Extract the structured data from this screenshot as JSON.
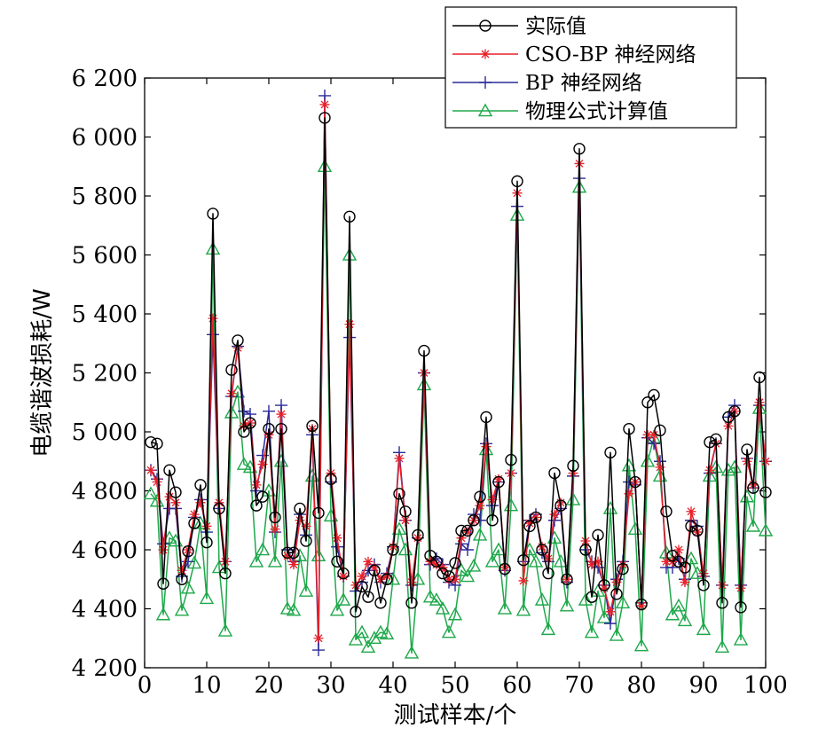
{
  "chart_data": {
    "type": "line",
    "xlabel": "测试样本/个",
    "ylabel": "电缆谐波损耗/W",
    "xlim": [
      0,
      100
    ],
    "ylim": [
      4200,
      6200
    ],
    "xticks": [
      0,
      10,
      20,
      30,
      40,
      50,
      60,
      70,
      80,
      90,
      100
    ],
    "yticks": [
      4200,
      4400,
      4600,
      4800,
      5000,
      5200,
      5400,
      5600,
      5800,
      6000,
      6200
    ],
    "xtick_labels": [
      "0",
      "10",
      "20",
      "30",
      "40",
      "50",
      "60",
      "70",
      "80",
      "90",
      "100"
    ],
    "ytick_labels": [
      "4 200",
      "4 400",
      "4 600",
      "4 800",
      "5 000",
      "5 200",
      "5 400",
      "5 600",
      "5 800",
      "6 000",
      "6 200"
    ],
    "legend_position": "top-right",
    "grid": false,
    "x": [
      1,
      2,
      3,
      4,
      5,
      6,
      7,
      8,
      9,
      10,
      11,
      12,
      13,
      14,
      15,
      16,
      17,
      18,
      19,
      20,
      21,
      22,
      23,
      24,
      25,
      26,
      27,
      28,
      29,
      30,
      31,
      32,
      33,
      34,
      35,
      36,
      37,
      38,
      39,
      40,
      41,
      42,
      43,
      44,
      45,
      46,
      47,
      48,
      49,
      50,
      51,
      52,
      53,
      54,
      55,
      56,
      57,
      58,
      59,
      60,
      61,
      62,
      63,
      64,
      65,
      66,
      67,
      68,
      69,
      70,
      71,
      72,
      73,
      74,
      75,
      76,
      77,
      78,
      79,
      80,
      81,
      82,
      83,
      84,
      85,
      86,
      87,
      88,
      89,
      90,
      91,
      92,
      93,
      94,
      95,
      96,
      97,
      98,
      99,
      100
    ],
    "series": [
      {
        "name": "实际值",
        "color": "#000000",
        "marker": "circle",
        "values": [
          4965,
          4960,
          4485,
          4870,
          4795,
          4500,
          4595,
          4690,
          4820,
          4625,
          5740,
          4740,
          4520,
          5210,
          5310,
          5000,
          5030,
          4750,
          4780,
          5010,
          4710,
          5010,
          4590,
          4590,
          4740,
          4630,
          5020,
          4725,
          6065,
          4840,
          4560,
          4520,
          5730,
          4390,
          4475,
          4440,
          4530,
          4420,
          4500,
          4600,
          4790,
          4730,
          4420,
          4650,
          5275,
          4580,
          4560,
          4520,
          4510,
          4555,
          4665,
          4665,
          4700,
          4780,
          5050,
          4700,
          4830,
          4535,
          4905,
          5850,
          4565,
          4680,
          4710,
          4600,
          4520,
          4860,
          4750,
          4500,
          4885,
          5960,
          4600,
          4440,
          4650,
          4480,
          4930,
          4450,
          4535,
          5010,
          4830,
          4415,
          5100,
          5125,
          5005,
          4730,
          4580,
          4560,
          4540,
          4680,
          4665,
          4480,
          4965,
          4975,
          4420,
          5050,
          5070,
          4405,
          4940,
          4810,
          5185,
          4795
        ]
      },
      {
        "name": "CSO-BP 神经网络",
        "color": "#e8202a",
        "marker": "star",
        "values": [
          4870,
          4830,
          4600,
          4780,
          4760,
          4530,
          4600,
          4720,
          4760,
          4680,
          5385,
          4760,
          4560,
          5130,
          5285,
          5020,
          5030,
          4820,
          4890,
          4990,
          4670,
          5060,
          4580,
          4550,
          4700,
          4680,
          5010,
          4300,
          6110,
          4860,
          4640,
          4510,
          5365,
          4480,
          4510,
          4560,
          4540,
          4500,
          4510,
          4610,
          4910,
          4700,
          4490,
          4640,
          5200,
          4560,
          4550,
          4540,
          4500,
          4500,
          4640,
          4660,
          4700,
          4750,
          4950,
          4770,
          4840,
          4540,
          4860,
          5810,
          4495,
          4690,
          4710,
          4610,
          4570,
          4720,
          4760,
          4500,
          4860,
          5910,
          4630,
          4550,
          4560,
          4470,
          4390,
          4490,
          4550,
          4790,
          4830,
          4410,
          4990,
          4990,
          4880,
          4560,
          4560,
          4600,
          4490,
          4730,
          4660,
          4520,
          4870,
          4960,
          4480,
          5020,
          5070,
          4470,
          4900,
          4820,
          5100,
          4900
        ]
      },
      {
        "name": "BP 神经网络",
        "color": "#2b2b9a",
        "marker": "plus",
        "values": [
          4870,
          4840,
          4620,
          4740,
          4740,
          4510,
          4560,
          4710,
          4770,
          4660,
          5330,
          4740,
          4560,
          5120,
          5290,
          5070,
          5060,
          4800,
          4920,
          5070,
          4660,
          5090,
          4600,
          4560,
          4720,
          4650,
          4990,
          4260,
          6140,
          4830,
          4610,
          4510,
          5320,
          4460,
          4490,
          4530,
          4550,
          4490,
          4520,
          4610,
          4930,
          4700,
          4480,
          4640,
          5200,
          4550,
          4570,
          4550,
          4490,
          4480,
          4620,
          4600,
          4720,
          4700,
          4960,
          4750,
          4830,
          4530,
          4860,
          5765,
          4560,
          4700,
          4720,
          4590,
          4560,
          4700,
          4740,
          4490,
          4850,
          5860,
          4600,
          4560,
          4540,
          4480,
          4350,
          4500,
          4560,
          4830,
          4820,
          4420,
          4980,
          4960,
          4900,
          4540,
          4540,
          4570,
          4500,
          4700,
          4680,
          4510,
          4860,
          4960,
          4480,
          5050,
          5090,
          4480,
          4910,
          4810,
          5090,
          4900
        ]
      },
      {
        "name": "物理公式计算值",
        "color": "#1ea84a",
        "marker": "triangle",
        "values": [
          4790,
          4765,
          4380,
          4640,
          4630,
          4395,
          4470,
          4555,
          4690,
          4435,
          5620,
          4540,
          4325,
          5065,
          5135,
          4890,
          4880,
          4560,
          4600,
          4800,
          4560,
          4900,
          4400,
          4395,
          4580,
          4460,
          4850,
          4580,
          5900,
          4715,
          4395,
          4430,
          5600,
          4295,
          4320,
          4270,
          4300,
          4320,
          4315,
          4500,
          4670,
          4600,
          4250,
          4500,
          5160,
          4440,
          4430,
          4400,
          4320,
          4380,
          4530,
          4510,
          4545,
          4650,
          4940,
          4560,
          4600,
          4400,
          4750,
          5735,
          4395,
          4600,
          4560,
          4430,
          4330,
          4640,
          4560,
          4410,
          4770,
          5830,
          4430,
          4320,
          4460,
          4370,
          4740,
          4310,
          4420,
          4885,
          4670,
          4275,
          4900,
          4980,
          4850,
          4590,
          4380,
          4410,
          4360,
          4570,
          4520,
          4330,
          4850,
          4880,
          4270,
          4870,
          4880,
          4295,
          4780,
          4680,
          5080,
          4665
        ]
      }
    ]
  }
}
